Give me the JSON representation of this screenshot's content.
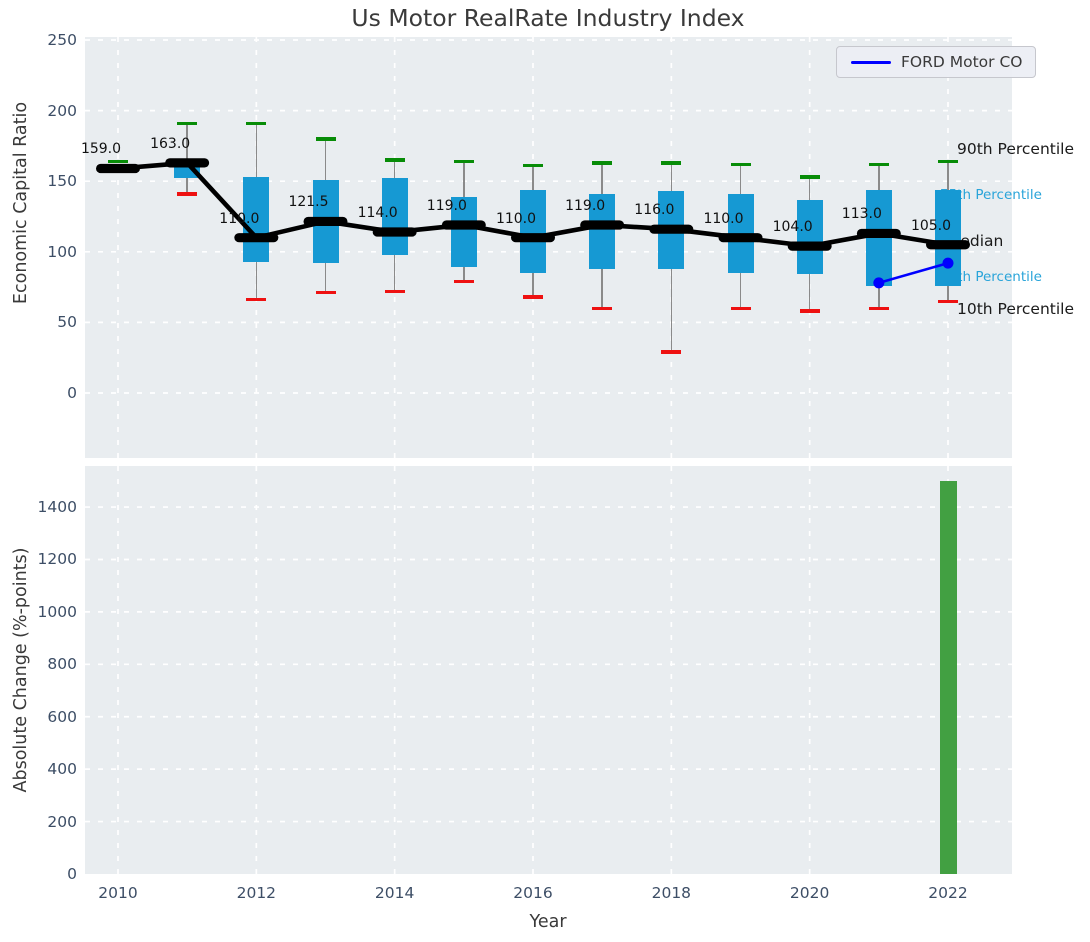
{
  "title": "Us Motor RealRate Industry Index",
  "legend": {
    "label": "FORD Motor CO"
  },
  "colors": {
    "company_line": "#0000ff",
    "box_fill": "#1699d3",
    "bar_fill": "#42a042",
    "cap_high": "#078c07",
    "cap_low": "#ee1111",
    "whisker": "#8a8a8a",
    "median_line": "#000000",
    "plot_bg": "#e9edf0",
    "grid": "#ffffff",
    "tick_text": "#3d4e66",
    "dark_text": "#3a3a3a",
    "cyan_text": "#29a4d9"
  },
  "chart_data": [
    {
      "type": "boxplot+medianline",
      "title": "Us Motor RealRate Industry Index",
      "ylabel": "Economic Capital Ratio",
      "ylim": [
        -46,
        252
      ],
      "yticks": [
        250,
        200,
        150,
        100,
        50,
        0
      ],
      "grid": true,
      "years": [
        2010,
        2011,
        2012,
        2013,
        2014,
        2015,
        2016,
        2017,
        2018,
        2019,
        2020,
        2021,
        2022
      ],
      "boxes": [
        {
          "year": 2010,
          "median": 159.0,
          "label": "159.0",
          "q1": 157,
          "q3": 161,
          "p10": null,
          "p90": 164
        },
        {
          "year": 2011,
          "median": 163.0,
          "label": "163.0",
          "q1": 152,
          "q3": 164,
          "p10": 141,
          "p90": 191
        },
        {
          "year": 2012,
          "median": 110.0,
          "label": "110.0",
          "q1": 93,
          "q3": 153,
          "p10": 66,
          "p90": 191
        },
        {
          "year": 2013,
          "median": 121.5,
          "label": "121.5",
          "q1": 92,
          "q3": 151,
          "p10": 71,
          "p90": 180
        },
        {
          "year": 2014,
          "median": 114.0,
          "label": "114.0",
          "q1": 98,
          "q3": 152,
          "p10": 72,
          "p90": 165
        },
        {
          "year": 2015,
          "median": 119.0,
          "label": "119.0",
          "q1": 89,
          "q3": 139,
          "p10": 79,
          "p90": 164
        },
        {
          "year": 2016,
          "median": 110.0,
          "label": "110.0",
          "q1": 85,
          "q3": 144,
          "p10": 68,
          "p90": 161
        },
        {
          "year": 2017,
          "median": 119.0,
          "label": "119.0",
          "q1": 88,
          "q3": 141,
          "p10": 60,
          "p90": 163
        },
        {
          "year": 2018,
          "median": 116.0,
          "label": "116.0",
          "q1": 88,
          "q3": 143,
          "p10": 29,
          "p90": 163
        },
        {
          "year": 2019,
          "median": 110.0,
          "label": "110.0",
          "q1": 85,
          "q3": 141,
          "p10": 60,
          "p90": 162
        },
        {
          "year": 2020,
          "median": 104.0,
          "label": "104.0",
          "q1": 84,
          "q3": 137,
          "p10": 58,
          "p90": 153
        },
        {
          "year": 2021,
          "median": 113.0,
          "label": "113.0",
          "q1": 76,
          "q3": 144,
          "p10": 60,
          "p90": 162
        },
        {
          "year": 2022,
          "median": 105.0,
          "label": "105.0",
          "q1": 76,
          "q3": 144,
          "p10": 65,
          "p90": 164
        }
      ],
      "company_series": {
        "name": "FORD Motor CO",
        "points": [
          {
            "x": 2021,
            "y": 78
          },
          {
            "x": 2022,
            "y": 92
          }
        ]
      },
      "annotations": [
        {
          "label": "90th Percentile",
          "value": 171,
          "dx": 9,
          "color": "dark",
          "size": "lg"
        },
        {
          "label": "75th Percentile",
          "value": 139,
          "dx": -8,
          "color": "cyan",
          "size": "sm"
        },
        {
          "label": "Median",
          "value": 106,
          "dx": -1,
          "color": "dark",
          "size": "lg"
        },
        {
          "label": "25th Percentile",
          "value": 81,
          "dx": -8,
          "color": "cyan",
          "size": "sm"
        },
        {
          "label": "10th Percentile",
          "value": 58,
          "dx": 9,
          "color": "dark",
          "size": "lg"
        }
      ],
      "legend_position": "upper right"
    },
    {
      "type": "bar",
      "xlabel": "Year",
      "ylabel": "Absolute Change (%-points)",
      "ylim": [
        0,
        1560
      ],
      "yticks": [
        0,
        200,
        400,
        600,
        800,
        1000,
        1200,
        1400
      ],
      "xticks": [
        2010,
        2012,
        2014,
        2016,
        2018,
        2020,
        2022
      ],
      "grid": true,
      "x": [
        2022
      ],
      "values": [
        1500
      ]
    }
  ]
}
